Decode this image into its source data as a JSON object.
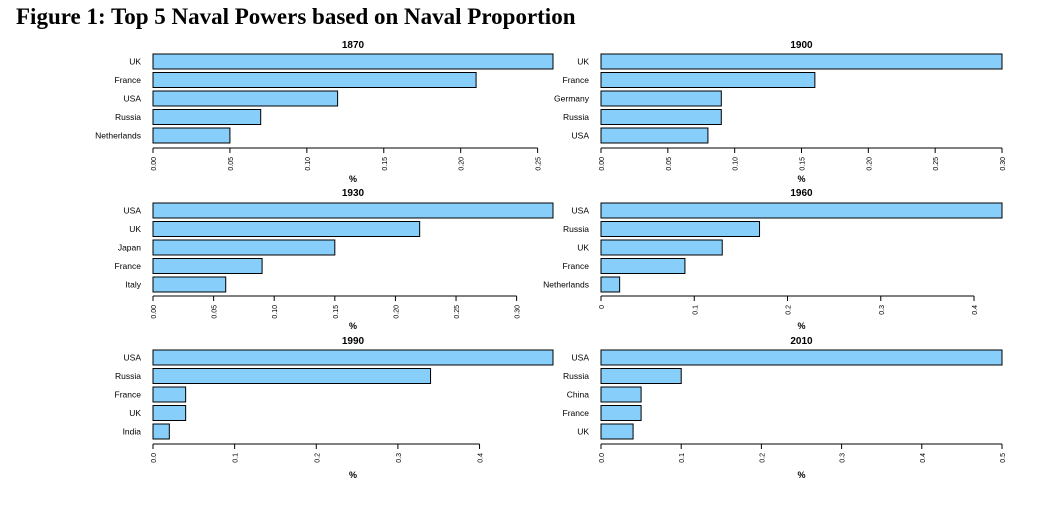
{
  "figure_title": "Figure 1: Top 5 Naval Powers based on Naval Proportion",
  "colors": {
    "bar_fill": "#87CEFA",
    "bar_stroke": "#000000"
  },
  "chart_data": [
    {
      "type": "bar",
      "orientation": "horizontal",
      "title": "1870",
      "xlabel": "%",
      "categories": [
        "UK",
        "France",
        "USA",
        "Russia",
        "Netherlands"
      ],
      "values": [
        0.26,
        0.21,
        0.12,
        0.07,
        0.05
      ],
      "xlim": [
        0,
        0.26
      ],
      "ticks": [
        0.0,
        0.05,
        0.1,
        0.15,
        0.2,
        0.25
      ],
      "tick_labels": [
        "0.00",
        "0.05",
        "0.10",
        "0.15",
        "0.20",
        "0.25"
      ],
      "grid": false
    },
    {
      "type": "bar",
      "orientation": "horizontal",
      "title": "1900",
      "xlabel": "%",
      "categories": [
        "UK",
        "France",
        "Germany",
        "Russia",
        "USA"
      ],
      "values": [
        0.3,
        0.16,
        0.09,
        0.09,
        0.08
      ],
      "xlim": [
        0,
        0.3
      ],
      "ticks": [
        0.0,
        0.05,
        0.1,
        0.15,
        0.2,
        0.25,
        0.3
      ],
      "tick_labels": [
        "0.00",
        "0.05",
        "0.10",
        "0.15",
        "0.20",
        "0.25",
        "0.30"
      ],
      "grid": false
    },
    {
      "type": "bar",
      "orientation": "horizontal",
      "title": "1930",
      "xlabel": "%",
      "categories": [
        "USA",
        "UK",
        "Japan",
        "France",
        "Italy"
      ],
      "values": [
        0.33,
        0.22,
        0.15,
        0.09,
        0.06
      ],
      "xlim": [
        0,
        0.33
      ],
      "ticks": [
        0.0,
        0.05,
        0.1,
        0.15,
        0.2,
        0.25,
        0.3
      ],
      "tick_labels": [
        "0.00",
        "0.05",
        "0.10",
        "0.15",
        "0.20",
        "0.25",
        "0.30"
      ],
      "grid": false
    },
    {
      "type": "bar",
      "orientation": "horizontal",
      "title": "1960",
      "xlabel": "%",
      "categories": [
        "USA",
        "Russia",
        "UK",
        "France",
        "Netherlands"
      ],
      "values": [
        0.43,
        0.17,
        0.13,
        0.09,
        0.02
      ],
      "xlim": [
        0,
        0.43
      ],
      "ticks": [
        0,
        0.1,
        0.2,
        0.3,
        0.4
      ],
      "tick_labels": [
        "0",
        "0.1",
        "0.2",
        "0.3",
        "0.4"
      ],
      "grid": false
    },
    {
      "type": "bar",
      "orientation": "horizontal",
      "title": "1990",
      "xlabel": "%",
      "categories": [
        "USA",
        "Russia",
        "France",
        "UK",
        "India"
      ],
      "values": [
        0.49,
        0.34,
        0.04,
        0.04,
        0.02
      ],
      "xlim": [
        0,
        0.49
      ],
      "ticks": [
        0.0,
        0.1,
        0.2,
        0.3,
        0.4
      ],
      "tick_labels": [
        "0.0",
        "0.1",
        "0.2",
        "0.3",
        "0.4"
      ],
      "grid": false
    },
    {
      "type": "bar",
      "orientation": "horizontal",
      "title": "2010",
      "xlabel": "%",
      "categories": [
        "USA",
        "Russia",
        "China",
        "France",
        "UK"
      ],
      "values": [
        0.5,
        0.1,
        0.05,
        0.05,
        0.04
      ],
      "xlim": [
        0,
        0.5
      ],
      "ticks": [
        0.0,
        0.1,
        0.2,
        0.3,
        0.4,
        0.5
      ],
      "tick_labels": [
        "0.0",
        "0.1",
        "0.2",
        "0.3",
        "0.4",
        "0.5"
      ],
      "grid": false
    }
  ]
}
